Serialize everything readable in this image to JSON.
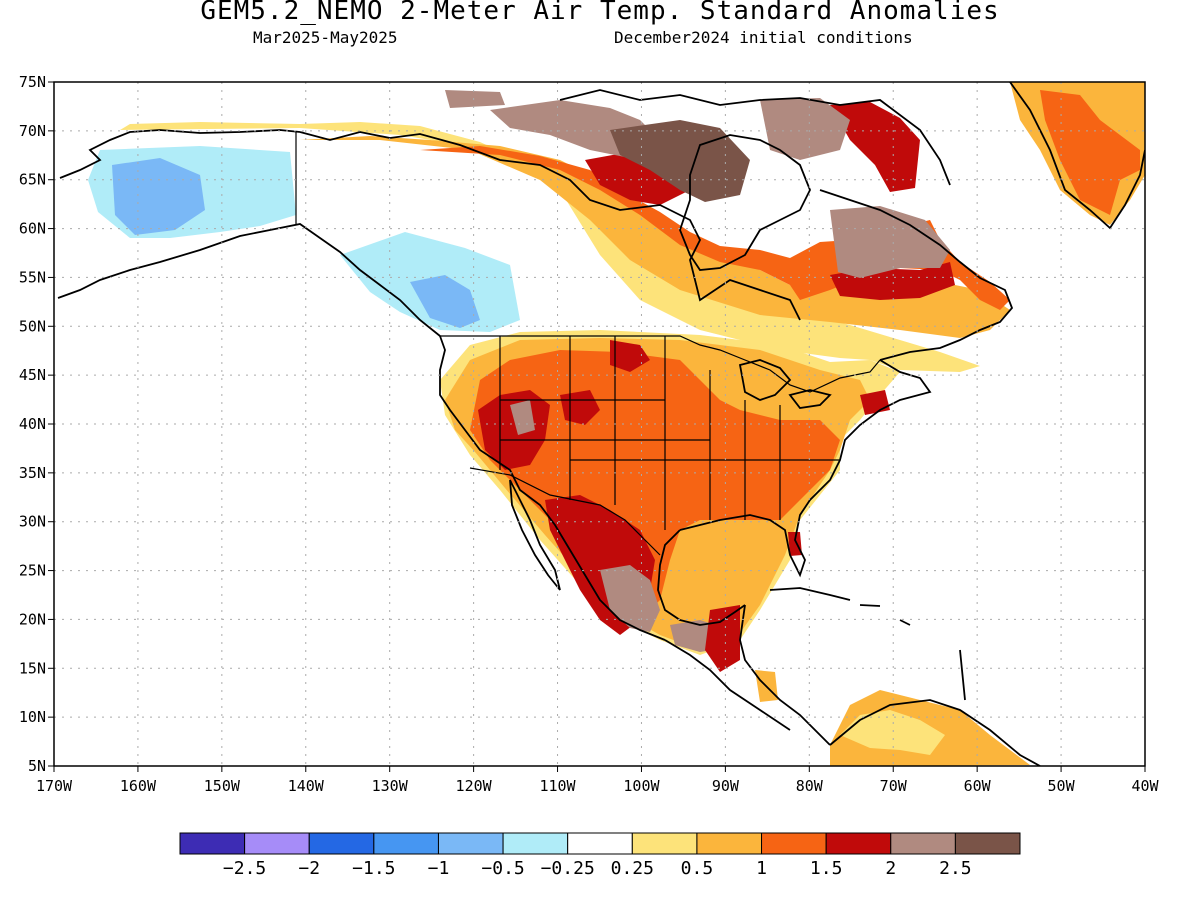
{
  "header": {
    "title": "GEM5.2_NEMO 2-Meter Air Temp. Standard Anomalies",
    "subtitle_left": "Mar2025-May2025",
    "subtitle_right": "December2024 initial conditions"
  },
  "axes": {
    "lat_labels": [
      "75N",
      "70N",
      "65N",
      "60N",
      "55N",
      "50N",
      "45N",
      "40N",
      "35N",
      "30N",
      "25N",
      "20N",
      "15N",
      "10N",
      "5N"
    ],
    "lon_labels": [
      "170W",
      "160W",
      "150W",
      "140W",
      "130W",
      "120W",
      "110W",
      "100W",
      "90W",
      "80W",
      "70W",
      "60W",
      "50W",
      "40W"
    ]
  },
  "colorbar": {
    "colors": [
      "#3d2cb4",
      "#a68cf8",
      "#2468e4",
      "#4696f2",
      "#7ab8f6",
      "#b0ecf8",
      "#ffffff",
      "#fde37a",
      "#fbb53c",
      "#f66414",
      "#c00a0a",
      "#b08a80",
      "#7a5448"
    ],
    "labels": [
      "−2.5",
      "−2",
      "−1.5",
      "−1",
      "−0.5",
      "−0.25",
      "0.25",
      "0.5",
      "1",
      "1.5",
      "2",
      "2.5"
    ]
  },
  "map_legend": {
    "ocean": "#ffffff",
    "coastline": "#000000"
  }
}
